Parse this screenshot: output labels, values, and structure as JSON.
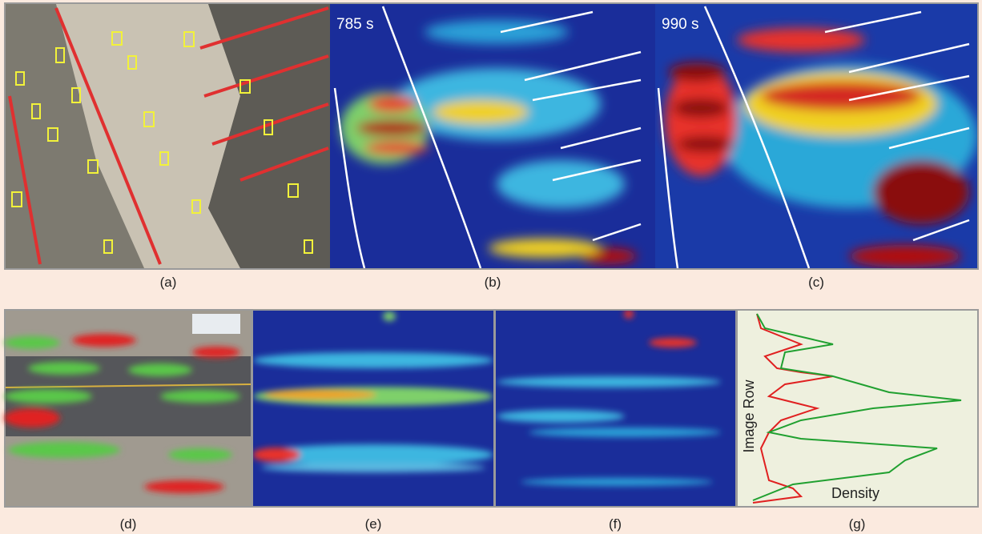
{
  "panels": [
    {
      "label": "(a)"
    },
    {
      "label": "(b)",
      "overlay": "785 s"
    },
    {
      "label": "(c)",
      "overlay": "990 s"
    },
    {
      "label": "(d)"
    },
    {
      "label": "(e)"
    },
    {
      "label": "(f)"
    },
    {
      "label": "(g)",
      "y_axis_label": "Image Row",
      "x_axis_label": "Density"
    }
  ]
}
